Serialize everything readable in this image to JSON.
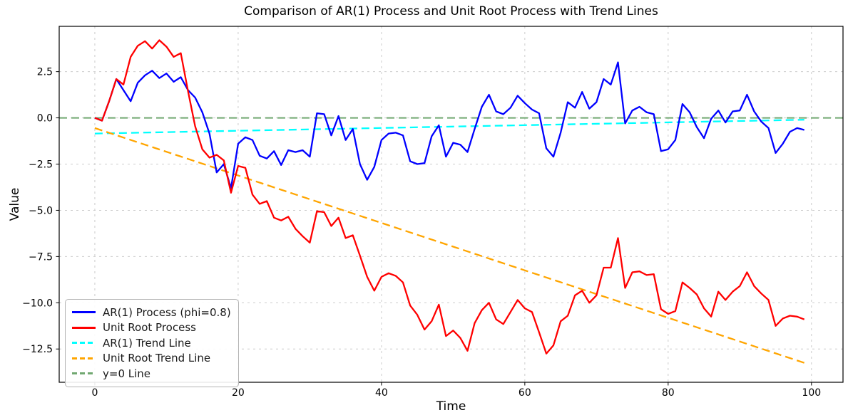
{
  "figure": {
    "background": "#ffffff",
    "frame_color": "#000000"
  },
  "chart_data": {
    "type": "line",
    "title": "Comparison of AR(1) Process and Unit Root Process with Trend Lines",
    "xlabel": "Time",
    "ylabel": "Value",
    "xlim": [
      -4.97,
      104.4
    ],
    "ylim": [
      -14.3,
      4.95
    ],
    "xticks": [
      0,
      20,
      40,
      60,
      80,
      100
    ],
    "xtick_labels": [
      "0",
      "20",
      "40",
      "60",
      "80",
      "100"
    ],
    "yticks": [
      2.5,
      0.0,
      -2.5,
      -5.0,
      -7.5,
      -10.0,
      -12.5
    ],
    "ytick_labels": [
      "2.5",
      "0.0",
      "−2.5",
      "−5.0",
      "−7.5",
      "−10.0",
      "−12.5"
    ],
    "grid": true,
    "grid_color": "#cccccc",
    "legend_position": "lower left",
    "series": [
      {
        "name": "AR(1) Process (phi=0.8)",
        "color": "#0000ff",
        "style": "solid",
        "values": [
          0.0,
          -0.15,
          0.9,
          2.1,
          1.5,
          0.9,
          1.9,
          2.3,
          2.55,
          2.15,
          2.4,
          1.95,
          2.2,
          1.5,
          1.1,
          0.3,
          -0.85,
          -2.95,
          -2.5,
          -3.8,
          -1.4,
          -1.05,
          -1.2,
          -2.05,
          -2.2,
          -1.8,
          -2.55,
          -1.75,
          -1.85,
          -1.75,
          -2.1,
          0.25,
          0.2,
          -0.95,
          0.1,
          -1.2,
          -0.6,
          -2.5,
          -3.35,
          -2.65,
          -1.2,
          -0.85,
          -0.8,
          -0.95,
          -2.35,
          -2.5,
          -2.45,
          -1.0,
          -0.4,
          -2.1,
          -1.35,
          -1.45,
          -1.85,
          -0.6,
          0.6,
          1.25,
          0.35,
          0.2,
          0.55,
          1.2,
          0.8,
          0.45,
          0.25,
          -1.65,
          -2.1,
          -0.8,
          0.85,
          0.55,
          1.4,
          0.5,
          0.85,
          2.1,
          1.8,
          3.0,
          -0.3,
          0.4,
          0.6,
          0.3,
          0.2,
          -1.8,
          -1.7,
          -1.2,
          0.75,
          0.3,
          -0.5,
          -1.1,
          -0.05,
          0.4,
          -0.25,
          0.35,
          0.4,
          1.25,
          0.35,
          -0.2,
          -0.55,
          -1.9,
          -1.4,
          -0.75,
          -0.55,
          -0.65
        ]
      },
      {
        "name": "Unit Root Process",
        "color": "#ff0000",
        "style": "solid",
        "values": [
          0.0,
          -0.15,
          0.9,
          2.1,
          1.8,
          3.3,
          3.9,
          4.15,
          3.75,
          4.2,
          3.85,
          3.3,
          3.5,
          1.45,
          -0.45,
          -1.7,
          -2.15,
          -2.0,
          -2.3,
          -4.05,
          -2.6,
          -2.7,
          -4.15,
          -4.65,
          -4.5,
          -5.4,
          -5.55,
          -5.35,
          -6.0,
          -6.4,
          -6.75,
          -5.05,
          -5.1,
          -5.85,
          -5.4,
          -6.5,
          -6.35,
          -7.45,
          -8.6,
          -9.35,
          -8.6,
          -8.4,
          -8.55,
          -8.9,
          -10.15,
          -10.65,
          -11.45,
          -11.0,
          -10.1,
          -11.8,
          -11.5,
          -11.9,
          -12.6,
          -11.1,
          -10.4,
          -10.0,
          -10.9,
          -11.15,
          -10.5,
          -9.85,
          -10.3,
          -10.5,
          -11.6,
          -12.75,
          -12.3,
          -11.0,
          -10.7,
          -9.6,
          -9.35,
          -10.0,
          -9.6,
          -8.1,
          -8.1,
          -6.5,
          -9.2,
          -8.35,
          -8.3,
          -8.5,
          -8.45,
          -10.35,
          -10.6,
          -10.45,
          -8.9,
          -9.2,
          -9.55,
          -10.3,
          -10.75,
          -9.4,
          -9.85,
          -9.4,
          -9.1,
          -8.35,
          -9.1,
          -9.5,
          -9.85,
          -11.25,
          -10.85,
          -10.7,
          -10.75,
          -10.9
        ]
      },
      {
        "name": "AR(1) Trend Line",
        "color": "#00ffff",
        "style": "dashed",
        "x": [
          0,
          99
        ],
        "values": [
          -0.85,
          -0.1
        ]
      },
      {
        "name": "Unit Root Trend Line",
        "color": "#ffa500",
        "style": "dashed",
        "x": [
          0,
          99
        ],
        "values": [
          -0.55,
          -13.25
        ]
      },
      {
        "name": "y=0 Line",
        "color": "#71a871",
        "style": "dashed",
        "full_width": true,
        "values": [
          0,
          0
        ]
      }
    ]
  }
}
